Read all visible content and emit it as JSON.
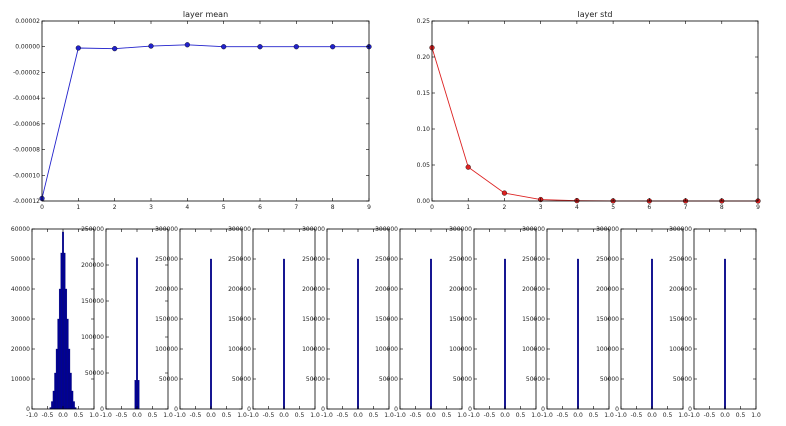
{
  "chart_data": [
    {
      "type": "line",
      "title": "layer mean",
      "color": "#2222cc",
      "x": [
        0,
        1,
        2,
        3,
        4,
        5,
        6,
        7,
        8,
        9
      ],
      "y": [
        -0.000118,
        -1e-06,
        -1.5e-06,
        5e-07,
        1.5e-06,
        0.0,
        0.0,
        0.0,
        0.0,
        0.0
      ],
      "xlim": [
        0,
        9
      ],
      "ylim": [
        -0.00012,
        2e-05
      ],
      "xticks": [
        "0",
        "1",
        "2",
        "3",
        "4",
        "5",
        "6",
        "7",
        "8",
        "9"
      ],
      "yticks": [
        "0.00002",
        "0.00000",
        "-0.00002",
        "-0.00004",
        "-0.00006",
        "-0.00008",
        "-0.00010",
        "-0.00012"
      ]
    },
    {
      "type": "line",
      "title": "layer std",
      "color": "#dd2222",
      "x": [
        0,
        1,
        2,
        3,
        4,
        5,
        6,
        7,
        8,
        9
      ],
      "y": [
        0.213,
        0.047,
        0.011,
        0.002,
        0.0005,
        0.0001,
        0.0,
        0.0,
        0.0,
        0.0
      ],
      "xlim": [
        0,
        9
      ],
      "ylim": [
        0,
        0.25
      ],
      "xticks": [
        "0",
        "1",
        "2",
        "3",
        "4",
        "5",
        "6",
        "7",
        "8",
        "9"
      ],
      "yticks": [
        "0.25",
        "0.20",
        "0.15",
        "0.10",
        "0.05",
        "0.00"
      ]
    },
    {
      "type": "bar",
      "subtype": "histogram",
      "color": "#000099",
      "xlim": [
        -1,
        1
      ],
      "xticks": [
        "-1.0",
        "-0.5",
        "0.0",
        "0.5",
        "1.0"
      ],
      "ylim": [
        0,
        60000
      ],
      "yticks": [
        "60000",
        "50000",
        "40000",
        "30000",
        "20000",
        "10000",
        "0"
      ],
      "bin_width": 0.05,
      "bins": [
        [
          -0.4,
          500
        ],
        [
          -0.35,
          2500
        ],
        [
          -0.3,
          6000
        ],
        [
          -0.25,
          12000
        ],
        [
          -0.2,
          20000
        ],
        [
          -0.15,
          30000
        ],
        [
          -0.1,
          40000
        ],
        [
          -0.05,
          52000
        ],
        [
          0.0,
          59000
        ],
        [
          0.05,
          52000
        ],
        [
          0.1,
          40000
        ],
        [
          0.15,
          30000
        ],
        [
          0.2,
          20000
        ],
        [
          0.25,
          12000
        ],
        [
          0.3,
          6000
        ],
        [
          0.35,
          2500
        ],
        [
          0.4,
          500
        ]
      ]
    },
    {
      "type": "bar",
      "subtype": "histogram",
      "color": "#000099",
      "xlim": [
        -1,
        1
      ],
      "xticks": [
        "-1.0",
        "-0.5",
        "0.0",
        "0.5",
        "1.0"
      ],
      "ylim": [
        0,
        250000
      ],
      "yticks": [
        "250000",
        "200000",
        "150000",
        "100000",
        "50000",
        "0"
      ],
      "bin_width": 0.05,
      "bins": [
        [
          -0.05,
          40000
        ],
        [
          0.0,
          210000
        ],
        [
          0.05,
          40000
        ]
      ]
    },
    {
      "type": "bar",
      "subtype": "histogram",
      "color": "#000099",
      "xlim": [
        -1,
        1
      ],
      "xticks": [
        "-1.0",
        "-0.5",
        "0.0",
        "0.5",
        "1.0"
      ],
      "ylim": [
        0,
        300000
      ],
      "yticks": [
        "300000",
        "250000",
        "200000",
        "150000",
        "100000",
        "50000",
        "0"
      ],
      "bin_width": 0.05,
      "bins": [
        [
          0.0,
          250000
        ]
      ]
    },
    {
      "type": "bar",
      "subtype": "histogram",
      "color": "#000099",
      "xlim": [
        -1,
        1
      ],
      "xticks": [
        "-1.0",
        "-0.5",
        "0.0",
        "0.5",
        "1.0"
      ],
      "ylim": [
        0,
        300000
      ],
      "yticks": [
        "300000",
        "250000",
        "200000",
        "150000",
        "100000",
        "50000",
        "0"
      ],
      "bin_width": 0.05,
      "bins": [
        [
          0.0,
          250000
        ]
      ]
    },
    {
      "type": "bar",
      "subtype": "histogram",
      "color": "#000099",
      "xlim": [
        -1,
        1
      ],
      "xticks": [
        "-1.0",
        "-0.5",
        "0.0",
        "0.5",
        "1.0"
      ],
      "ylim": [
        0,
        300000
      ],
      "yticks": [
        "300000",
        "250000",
        "200000",
        "150000",
        "100000",
        "50000",
        "0"
      ],
      "bin_width": 0.05,
      "bins": [
        [
          0.0,
          250000
        ]
      ]
    },
    {
      "type": "bar",
      "subtype": "histogram",
      "color": "#000099",
      "xlim": [
        -1,
        1
      ],
      "xticks": [
        "-1.0",
        "-0.5",
        "0.0",
        "0.5",
        "1.0"
      ],
      "ylim": [
        0,
        300000
      ],
      "yticks": [
        "300000",
        "250000",
        "200000",
        "150000",
        "100000",
        "50000",
        "0"
      ],
      "bin_width": 0.05,
      "bins": [
        [
          0.0,
          250000
        ]
      ]
    },
    {
      "type": "bar",
      "subtype": "histogram",
      "color": "#000099",
      "xlim": [
        -1,
        1
      ],
      "xticks": [
        "-1.0",
        "-0.5",
        "0.0",
        "0.5",
        "1.0"
      ],
      "ylim": [
        0,
        300000
      ],
      "yticks": [
        "300000",
        "250000",
        "200000",
        "150000",
        "100000",
        "50000",
        "0"
      ],
      "bin_width": 0.05,
      "bins": [
        [
          0.0,
          250000
        ]
      ]
    },
    {
      "type": "bar",
      "subtype": "histogram",
      "color": "#000099",
      "xlim": [
        -1,
        1
      ],
      "xticks": [
        "-1.0",
        "-0.5",
        "0.0",
        "0.5",
        "1.0"
      ],
      "ylim": [
        0,
        300000
      ],
      "yticks": [
        "300000",
        "250000",
        "200000",
        "150000",
        "100000",
        "50000",
        "0"
      ],
      "bin_width": 0.05,
      "bins": [
        [
          0.0,
          250000
        ]
      ]
    },
    {
      "type": "bar",
      "subtype": "histogram",
      "color": "#000099",
      "xlim": [
        -1,
        1
      ],
      "xticks": [
        "-1.0",
        "-0.5",
        "0.0",
        "0.5",
        "1.0"
      ],
      "ylim": [
        0,
        300000
      ],
      "yticks": [
        "300000",
        "250000",
        "200000",
        "150000",
        "100000",
        "50000",
        "0"
      ],
      "bin_width": 0.05,
      "bins": [
        [
          0.0,
          250000
        ]
      ]
    },
    {
      "type": "bar",
      "subtype": "histogram",
      "color": "#000099",
      "xlim": [
        -1,
        1
      ],
      "xticks": [
        "-1.0",
        "-0.5",
        "0.0",
        "0.5",
        "1.0"
      ],
      "ylim": [
        0,
        300000
      ],
      "yticks": [
        "300000",
        "250000",
        "200000",
        "150000",
        "100000",
        "50000",
        "0"
      ],
      "bin_width": 0.05,
      "bins": [
        [
          0.0,
          250000
        ]
      ]
    }
  ]
}
